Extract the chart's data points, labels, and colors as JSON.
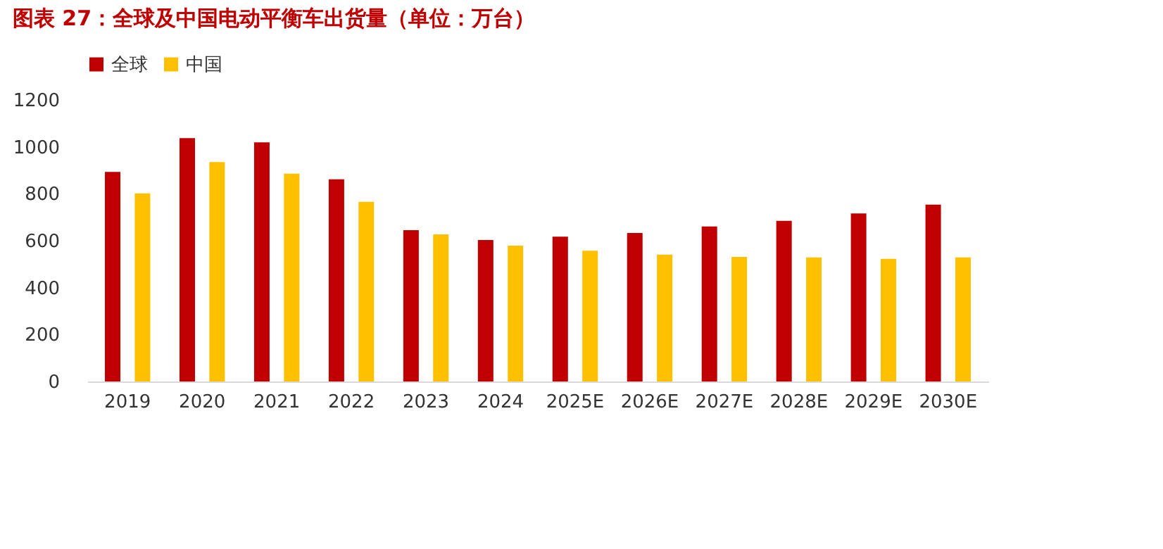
{
  "chart_data": {
    "type": "bar",
    "title": "图表 27：全球及中国电动平衡车出货量（单位：万台）",
    "categories": [
      "2019",
      "2020",
      "2021",
      "2022",
      "2023",
      "2024",
      "2025E",
      "2026E",
      "2027E",
      "2028E",
      "2029E",
      "2030E"
    ],
    "series": [
      {
        "name": "全球",
        "color": "#c00000",
        "values": [
          893,
          1037,
          1019,
          862,
          645,
          603,
          617,
          633,
          661,
          685,
          716,
          754
        ]
      },
      {
        "name": "中国",
        "color": "#ffc000",
        "values": [
          802,
          935,
          886,
          766,
          627,
          579,
          557,
          541,
          531,
          529,
          523,
          529
        ]
      }
    ],
    "ylim": [
      0,
      1200
    ],
    "yticks": [
      0,
      200,
      400,
      600,
      800,
      1000,
      1200
    ],
    "grid": false,
    "legend": "top"
  }
}
